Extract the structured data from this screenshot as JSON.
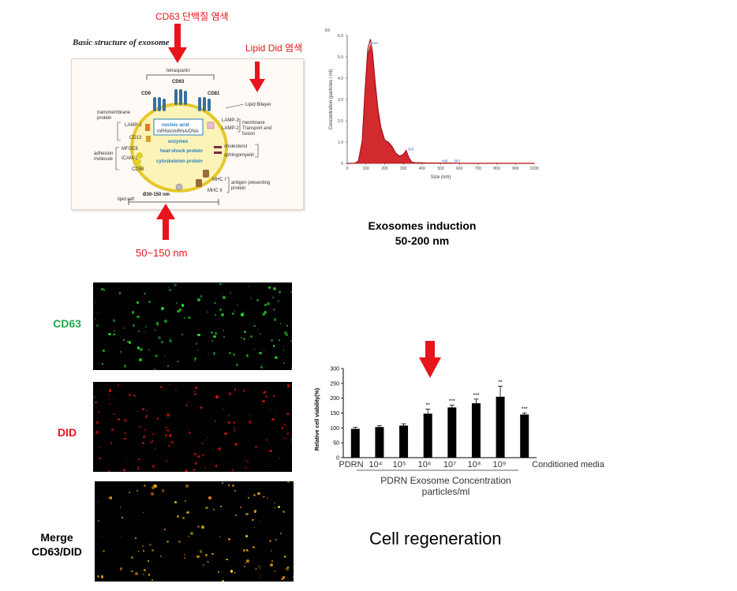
{
  "schematic": {
    "title": "Basic structure of exosome",
    "labels": {
      "tetraspanin": "tetraspanin",
      "cd63": "CD63",
      "cd9": "CD9",
      "cd81": "CD81",
      "lipid_bilayer": "Lipid Bilayer",
      "transmembrane1": "transmembrane",
      "transmembrane2": "protein",
      "lamp1_left": "LAMP-1",
      "cd13": "CD13",
      "nucleic": "nucleic acid",
      "rna": "mRNA/miRNA/DNA",
      "enzymes": "enzymes",
      "hsp": "heat-shock protein",
      "cyto": "cytoskeleton protein",
      "lamp1_right": "LAMP-1",
      "lamp2_right": "LAMP-2",
      "membrane1": "membrane",
      "membrane2": "Transport and",
      "membrane3": "fusion",
      "adhesion1": "adhesion",
      "adhesion2": "molecule",
      "mfge8": "MFGE8",
      "icam1": "ICAM-1",
      "cd58": "CD58",
      "cholesterol": "cholesterol",
      "sphingomyelin": "sphingomyelin",
      "mhc1": "MHC I",
      "mhc2": "MHC II",
      "antigen1": "antigen presenting",
      "antigen2": "protein",
      "size": "Ø30-150 nm",
      "lipid_raft": "lipid raft"
    }
  },
  "annotations": {
    "cd63_stain": "CD63 단백질 염색",
    "lipid_stain": "Lipid Did 염색",
    "size_range": "50~150 nm",
    "exo_induction_1": "Exosomes induction",
    "exo_induction_2": "50-200 nm",
    "cell_regeneration": "Cell regeneration"
  },
  "micro_labels": {
    "cd63": "CD63",
    "did": "DID",
    "merge1": "Merge",
    "merge2": "CD63/DID"
  },
  "colors": {
    "arrow": "#e8141b",
    "cd63_green": "#1fa84a",
    "did_red": "#e8141b",
    "curve": "#d0181e"
  },
  "chart_data": [
    {
      "type": "area",
      "title": "",
      "exponent_label": "E6",
      "xlabel": "Size (nm)",
      "ylabel": "Concentration (particles / ml)",
      "xlim": [
        0,
        1000
      ],
      "ylim": [
        0,
        6.0
      ],
      "xticks": [
        "0",
        "100",
        "200",
        "300",
        "400",
        "500",
        "600",
        "700",
        "800",
        "900",
        "1000"
      ],
      "yticks": [
        "0",
        "1.0",
        "2.0",
        "3.0",
        "4.0",
        "5.0",
        "6.0"
      ],
      "peak_labels": [
        "124",
        "315",
        "498",
        "563"
      ],
      "series": [
        {
          "x": [
            0,
            40,
            60,
            80,
            95,
            110,
            124,
            135,
            150,
            165,
            180,
            200,
            220,
            240,
            260,
            280,
            300,
            315,
            330,
            345,
            360,
            400,
            450,
            500,
            550,
            600,
            700,
            800,
            900,
            1000
          ],
          "values": [
            0,
            0,
            0.1,
            1.0,
            3.2,
            5.1,
            5.55,
            5.0,
            3.6,
            2.4,
            1.6,
            1.05,
            0.95,
            0.75,
            0.45,
            0.32,
            0.4,
            0.58,
            0.25,
            0.06,
            0.03,
            0.02,
            0.01,
            0.01,
            0.01,
            0.0,
            0.0,
            0.0,
            0.0,
            0.0
          ]
        }
      ]
    },
    {
      "type": "bar",
      "title": "",
      "xlabel": "PDRN Exosome Concentration",
      "xlabel2": "particles/ml",
      "ylabel": "Relative cell viability(%)",
      "ylim": [
        0,
        300
      ],
      "yticks": [
        "0",
        "50",
        "100",
        "150",
        "200",
        "250",
        "300"
      ],
      "categories": [
        "PDRN",
        "10⁴",
        "10⁵",
        "10⁶",
        "10⁷",
        "10⁸",
        "10⁹",
        "Conditioned media"
      ],
      "values": [
        97,
        103,
        108,
        148,
        169,
        183,
        205,
        145
      ],
      "errors": [
        5,
        5,
        6,
        15,
        8,
        14,
        35,
        5
      ],
      "significance": [
        "",
        "",
        "",
        "**",
        "***",
        "***",
        "**",
        "***"
      ]
    }
  ]
}
